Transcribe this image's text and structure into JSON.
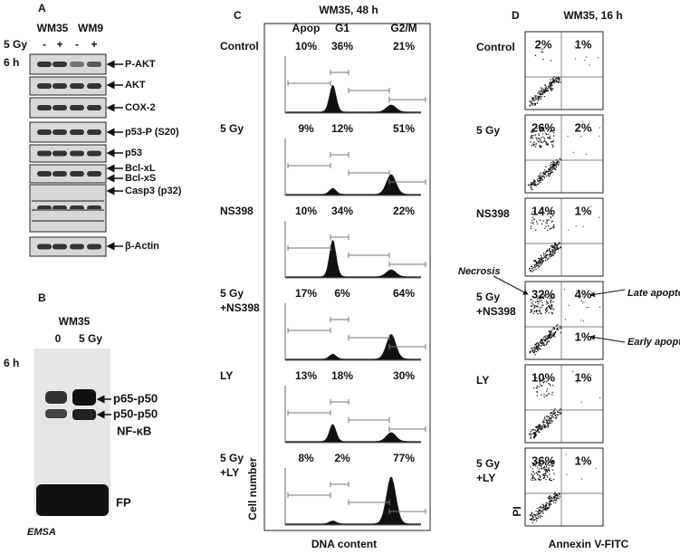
{
  "panel_a": {
    "label": "A",
    "groups": [
      "WM35",
      "WM9"
    ],
    "treatment": "5 Gy",
    "signs": [
      "-",
      "+",
      "-",
      "+"
    ],
    "time": "6 h",
    "bands": [
      "P-AKT",
      "AKT",
      "COX-2",
      "p53-P (S20)",
      "p53",
      "Bcl-xL",
      "Bcl-xS",
      "Casp3 (p32)",
      "β-Actin"
    ]
  },
  "panel_b": {
    "label": "B",
    "cell": "WM35",
    "lanes": [
      "0",
      "5 Gy"
    ],
    "time": "6 h",
    "bands": [
      "p65-p50",
      "p50-p50"
    ],
    "complex": "NF-κB",
    "free_probe": "FP",
    "assay": "EMSA"
  },
  "panel_c": {
    "label": "C",
    "title": "WM35, 48 h",
    "columns": [
      "Apop",
      "G1",
      "G2/M"
    ],
    "rows": [
      {
        "condition": [
          "Control"
        ],
        "percents": [
          "10%",
          "36%",
          "21%"
        ]
      },
      {
        "condition": [
          "5 Gy"
        ],
        "percents": [
          "9%",
          "12%",
          "51%"
        ]
      },
      {
        "condition": [
          "NS398"
        ],
        "percents": [
          "10%",
          "34%",
          "22%"
        ]
      },
      {
        "condition": [
          "5 Gy",
          "+NS398"
        ],
        "percents": [
          "17%",
          "6%",
          "64%"
        ]
      },
      {
        "condition": [
          "LY"
        ],
        "percents": [
          "13%",
          "18%",
          "30%"
        ]
      },
      {
        "condition": [
          "5 Gy",
          "+LY"
        ],
        "percents": [
          "8%",
          "2%",
          "77%"
        ]
      }
    ],
    "y_label": "Cell number",
    "x_label": "DNA content"
  },
  "panel_d": {
    "label": "D",
    "title": "WM35, 16 h",
    "rows": [
      {
        "condition": [
          "Control"
        ],
        "quadrants": [
          "2%",
          "1%"
        ]
      },
      {
        "condition": [
          "5 Gy"
        ],
        "quadrants": [
          "26%",
          "2%"
        ]
      },
      {
        "condition": [
          "NS398"
        ],
        "quadrants": [
          "14%",
          "1%"
        ]
      },
      {
        "condition": [
          "5 Gy",
          "+NS398"
        ],
        "quadrants": [
          "32%",
          "4%",
          "1%"
        ]
      },
      {
        "condition": [
          "LY"
        ],
        "quadrants": [
          "10%",
          "1%"
        ]
      },
      {
        "condition": [
          "5 Gy",
          "+LY"
        ],
        "quadrants": [
          "36%",
          "1%"
        ]
      }
    ],
    "annotations": [
      "Necrosis",
      "Late apoptosis",
      "Early apoptosis"
    ],
    "y_label": "PI",
    "x_label": "Annexin V-FITC"
  }
}
